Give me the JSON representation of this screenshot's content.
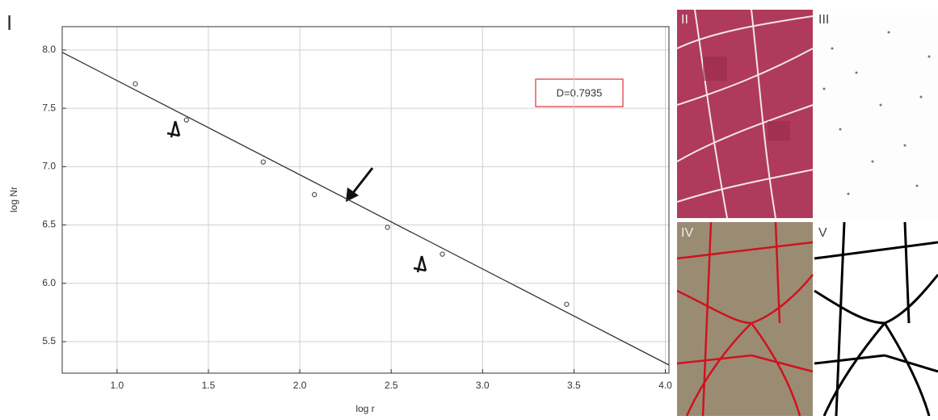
{
  "chart_data": {
    "type": "scatter",
    "panel_labels": [
      "I",
      "II",
      "III",
      "IV",
      "V"
    ],
    "annotation": "D=0.7935",
    "xlabel": "log r",
    "ylabel": "log Nr",
    "xlim": [
      0.7,
      4.02
    ],
    "ylim": [
      5.23,
      8.2
    ],
    "xticks": [
      {
        "value": 1.0,
        "label": "1.0"
      },
      1.5,
      {
        "value": 2.0,
        "label": "2.0"
      },
      2.5,
      {
        "value": 3.0,
        "label": "3.0"
      },
      3.5,
      {
        "value": 4.0,
        "label": "4.0"
      }
    ],
    "yticks": [
      5.5,
      {
        "value": 6.0,
        "label": "6.0"
      },
      6.5,
      {
        "value": 7.0,
        "label": "7.0"
      },
      7.5,
      {
        "value": 8.0,
        "label": "8.0"
      }
    ],
    "grid": true,
    "series": [
      {
        "type": "scatter",
        "color": "#555555",
        "x": [
          1.1,
          1.38,
          1.8,
          2.08,
          2.48,
          2.78,
          3.46
        ],
        "values": [
          7.71,
          7.4,
          7.04,
          6.76,
          6.48,
          6.25,
          5.82
        ]
      },
      {
        "type": "line",
        "color": "#333333",
        "x": [
          0.7,
          4.02
        ],
        "values": [
          7.98,
          5.3
        ]
      }
    ]
  }
}
